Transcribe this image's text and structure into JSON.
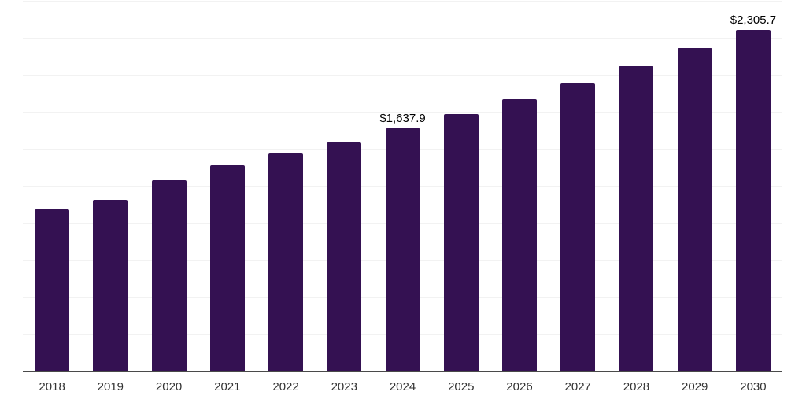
{
  "chart_data": {
    "type": "bar",
    "title": "",
    "xlabel": "",
    "ylabel": "",
    "categories": [
      "2018",
      "2019",
      "2020",
      "2021",
      "2022",
      "2023",
      "2024",
      "2025",
      "2026",
      "2027",
      "2028",
      "2029",
      "2030"
    ],
    "values": [
      1090,
      1153,
      1286,
      1388,
      1466,
      1545,
      1637.9,
      1734.1,
      1835.9,
      1943.6,
      2057.7,
      2178.4,
      2305.7
    ],
    "data_labels": {
      "2024": "$1,637.9",
      "2030": "$2,305.7"
    },
    "ylim": [
      0,
      2500
    ],
    "grid_step": 250,
    "grid": true,
    "legend_position": "none",
    "colors": {
      "bar": "#341152",
      "gridline": "#f2f2f2",
      "axis_line": "#4a4a4a",
      "tick_label": "#333333",
      "data_label": "#000000",
      "background": "#ffffff"
    }
  }
}
